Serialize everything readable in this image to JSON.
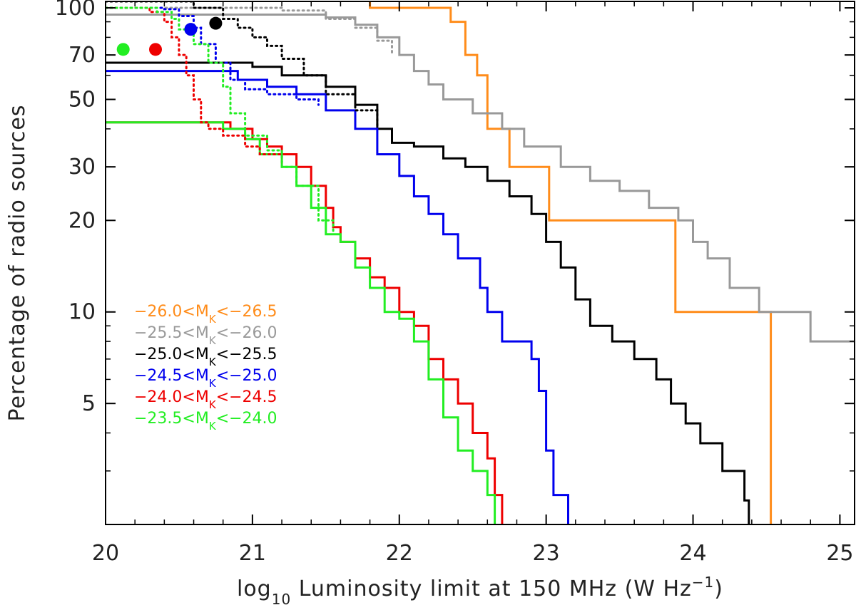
{
  "chart_data": {
    "type": "line",
    "step": true,
    "xlabel": {
      "prefix": "log",
      "subscript": "10",
      "main": " Luminosity limit at 150 MHz (W Hz",
      "superscript": "−1",
      "suffix": ")"
    },
    "ylabel": "Percentage of radio sources",
    "xlim": [
      20,
      25.1
    ],
    "ylim": [
      2,
      105
    ],
    "yscale": "log",
    "xticks": [
      20,
      21,
      22,
      23,
      24,
      25
    ],
    "xtick_labels": [
      "20",
      "21",
      "22",
      "23",
      "24",
      "25"
    ],
    "yticks": [
      5,
      10,
      20,
      30,
      50,
      70,
      100
    ],
    "ytick_labels": [
      "5",
      "10",
      "20",
      "30",
      "50",
      "70",
      "100"
    ],
    "legend_position": "lower-left",
    "series": [
      {
        "name": "−26.0<M_K<−26.5",
        "label": {
          "pre": "−26.0<M",
          "sub": "K",
          "post": "<−26.5"
        },
        "color": "#ff8c1a",
        "style": "solid",
        "points": [
          [
            21.8,
            105
          ],
          [
            21.8,
            100
          ],
          [
            22.35,
            100
          ],
          [
            22.35,
            90
          ],
          [
            22.45,
            90
          ],
          [
            22.45,
            70
          ],
          [
            22.53,
            70
          ],
          [
            22.53,
            60
          ],
          [
            22.6,
            60
          ],
          [
            22.6,
            40
          ],
          [
            22.75,
            40
          ],
          [
            22.75,
            30
          ],
          [
            23.02,
            30
          ],
          [
            23.02,
            20
          ],
          [
            23.88,
            20
          ],
          [
            23.88,
            10
          ],
          [
            24.53,
            10
          ],
          [
            24.53,
            2
          ]
        ]
      },
      {
        "name": "−25.5<M_K<−26.0",
        "label": {
          "pre": "−25.5<M",
          "sub": "K",
          "post": "<−26.0"
        },
        "color": "#999999",
        "style": "solid",
        "points": [
          [
            20,
            95
          ],
          [
            21,
            95
          ],
          [
            21.5,
            93
          ],
          [
            21.7,
            88
          ],
          [
            21.85,
            80
          ],
          [
            22.0,
            70
          ],
          [
            22.1,
            62
          ],
          [
            22.2,
            56
          ],
          [
            22.3,
            50
          ],
          [
            22.5,
            45
          ],
          [
            22.7,
            40
          ],
          [
            22.85,
            35
          ],
          [
            23.1,
            30
          ],
          [
            23.3,
            27
          ],
          [
            23.5,
            25
          ],
          [
            23.7,
            22
          ],
          [
            23.9,
            20
          ],
          [
            24.0,
            17
          ],
          [
            24.1,
            15
          ],
          [
            24.25,
            12
          ],
          [
            24.45,
            10
          ],
          [
            24.8,
            10
          ],
          [
            24.8,
            8
          ],
          [
            25.1,
            8
          ]
        ]
      },
      {
        "name": "−25.0<M_K<−25.5",
        "label": {
          "pre": "−25.0<M",
          "sub": "K",
          "post": "<−25.5"
        },
        "color": "#000000",
        "style": "solid",
        "points": [
          [
            20,
            66
          ],
          [
            20.8,
            66
          ],
          [
            21.0,
            64
          ],
          [
            21.2,
            60
          ],
          [
            21.5,
            55
          ],
          [
            21.7,
            48
          ],
          [
            21.85,
            40
          ],
          [
            21.95,
            36
          ],
          [
            22.1,
            35
          ],
          [
            22.3,
            32
          ],
          [
            22.45,
            30
          ],
          [
            22.6,
            27
          ],
          [
            22.75,
            24
          ],
          [
            22.9,
            21
          ],
          [
            23.0,
            17
          ],
          [
            23.1,
            14
          ],
          [
            23.2,
            11
          ],
          [
            23.3,
            9
          ],
          [
            23.45,
            8
          ],
          [
            23.6,
            7
          ],
          [
            23.75,
            6
          ],
          [
            23.85,
            5
          ],
          [
            23.95,
            4.3
          ],
          [
            24.05,
            3.7
          ],
          [
            24.2,
            3
          ],
          [
            24.35,
            2.4
          ],
          [
            24.38,
            2
          ]
        ]
      },
      {
        "name": "−24.5<M_K<−25.0",
        "label": {
          "pre": "−24.5<M",
          "sub": "K",
          "post": "<−25.0"
        },
        "color": "#0000ee",
        "style": "solid",
        "points": [
          [
            20,
            62
          ],
          [
            20.7,
            62
          ],
          [
            20.9,
            58
          ],
          [
            21.1,
            55
          ],
          [
            21.3,
            52
          ],
          [
            21.5,
            46
          ],
          [
            21.7,
            40
          ],
          [
            21.85,
            33
          ],
          [
            22.0,
            28
          ],
          [
            22.1,
            24
          ],
          [
            22.2,
            21
          ],
          [
            22.3,
            18
          ],
          [
            22.4,
            15
          ],
          [
            22.55,
            12
          ],
          [
            22.6,
            10
          ],
          [
            22.7,
            8
          ],
          [
            22.9,
            7
          ],
          [
            22.95,
            5.5
          ],
          [
            23.0,
            3.5
          ],
          [
            23.05,
            2.5
          ],
          [
            23.15,
            2.5
          ],
          [
            23.15,
            2
          ]
        ]
      },
      {
        "name": "−24.0<M_K<−24.5",
        "label": {
          "pre": "−24.0<M",
          "sub": "K",
          "post": "<−24.5"
        },
        "color": "#ee0000",
        "style": "solid",
        "points": [
          [
            20,
            42
          ],
          [
            20.7,
            42
          ],
          [
            20.85,
            40
          ],
          [
            21.0,
            37
          ],
          [
            21.1,
            35
          ],
          [
            21.2,
            33
          ],
          [
            21.3,
            30
          ],
          [
            21.4,
            26
          ],
          [
            21.5,
            22
          ],
          [
            21.55,
            19
          ],
          [
            21.6,
            17
          ],
          [
            21.7,
            15
          ],
          [
            21.8,
            13
          ],
          [
            21.9,
            12
          ],
          [
            22.0,
            10
          ],
          [
            22.1,
            9
          ],
          [
            22.2,
            7
          ],
          [
            22.3,
            6
          ],
          [
            22.4,
            5
          ],
          [
            22.5,
            4
          ],
          [
            22.6,
            3.3
          ],
          [
            22.65,
            2.5
          ],
          [
            22.7,
            2
          ]
        ]
      },
      {
        "name": "−23.5<M_K<−24.0",
        "label": {
          "pre": "−23.5<M",
          "sub": "K",
          "post": "<−24.0"
        },
        "color": "#22ee22",
        "style": "solid",
        "points": [
          [
            20,
            42
          ],
          [
            20.7,
            42
          ],
          [
            20.8,
            40
          ],
          [
            20.95,
            37
          ],
          [
            21.05,
            33
          ],
          [
            21.2,
            30
          ],
          [
            21.3,
            26
          ],
          [
            21.4,
            22
          ],
          [
            21.5,
            18
          ],
          [
            21.6,
            17
          ],
          [
            21.7,
            14
          ],
          [
            21.8,
            12
          ],
          [
            21.9,
            10
          ],
          [
            22.0,
            9.5
          ],
          [
            22.1,
            8
          ],
          [
            22.2,
            6
          ],
          [
            22.3,
            4.5
          ],
          [
            22.4,
            3.5
          ],
          [
            22.5,
            3
          ],
          [
            22.6,
            2.5
          ],
          [
            22.65,
            2
          ]
        ]
      },
      {
        "name": "dotted-grey",
        "color": "#999999",
        "style": "dotted",
        "points": [
          [
            20,
            100
          ],
          [
            20.9,
            100
          ],
          [
            21.2,
            98
          ],
          [
            21.5,
            92
          ],
          [
            21.7,
            86
          ],
          [
            21.85,
            78
          ],
          [
            21.95,
            70
          ]
        ]
      },
      {
        "name": "dotted-black",
        "color": "#000000",
        "style": "dotted",
        "points": [
          [
            20,
            105
          ],
          [
            20.6,
            100
          ],
          [
            20.8,
            92
          ],
          [
            20.9,
            86
          ],
          [
            21.0,
            80
          ],
          [
            21.1,
            75
          ],
          [
            21.2,
            68
          ],
          [
            21.35,
            60
          ],
          [
            21.5,
            52
          ],
          [
            21.7,
            46
          ],
          [
            21.85,
            40
          ]
        ]
      },
      {
        "name": "dotted-blue",
        "color": "#0000ee",
        "style": "dotted",
        "points": [
          [
            20,
            100
          ],
          [
            20.4,
            99
          ],
          [
            20.5,
            94
          ],
          [
            20.6,
            86
          ],
          [
            20.65,
            76
          ],
          [
            20.75,
            66
          ],
          [
            20.85,
            58
          ],
          [
            20.95,
            54
          ],
          [
            21.1,
            52
          ],
          [
            21.3,
            50
          ],
          [
            21.45,
            48
          ]
        ]
      },
      {
        "name": "dotted-red",
        "color": "#ee0000",
        "style": "dotted",
        "points": [
          [
            20,
            100
          ],
          [
            20.3,
            97
          ],
          [
            20.4,
            90
          ],
          [
            20.45,
            80
          ],
          [
            20.5,
            70
          ],
          [
            20.55,
            60
          ],
          [
            20.6,
            50
          ],
          [
            20.65,
            42
          ],
          [
            20.7,
            40
          ],
          [
            20.8,
            38
          ],
          [
            20.95,
            35
          ],
          [
            21.05,
            33
          ],
          [
            21.2,
            31
          ]
        ]
      },
      {
        "name": "dotted-green",
        "color": "#22ee22",
        "style": "dotted",
        "points": [
          [
            20,
            100
          ],
          [
            20.35,
            97
          ],
          [
            20.45,
            92
          ],
          [
            20.5,
            85
          ],
          [
            20.6,
            76
          ],
          [
            20.7,
            66
          ],
          [
            20.8,
            55
          ],
          [
            20.85,
            45
          ],
          [
            20.95,
            38
          ],
          [
            21.1,
            34
          ],
          [
            21.2,
            30
          ],
          [
            21.3,
            26
          ],
          [
            21.45,
            20
          ],
          [
            21.55,
            18
          ]
        ]
      }
    ],
    "markers": [
      {
        "color": "#22ee22",
        "x": 20.12,
        "y": 73
      },
      {
        "color": "#ee0000",
        "x": 20.34,
        "y": 73
      },
      {
        "color": "#0000ee",
        "x": 20.58,
        "y": 85
      },
      {
        "color": "#000000",
        "x": 20.75,
        "y": 89
      }
    ]
  }
}
